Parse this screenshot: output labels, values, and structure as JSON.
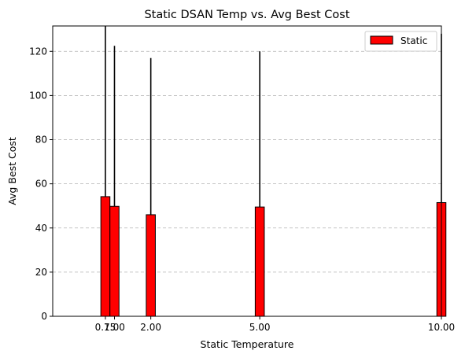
{
  "chart_data": {
    "type": "bar",
    "title": "Static DSAN Temp vs. Avg Best Cost",
    "xlabel": "Static Temperature",
    "ylabel": "Avg Best Cost",
    "x": [
      0.75,
      1.0,
      2.0,
      5.0,
      10.0
    ],
    "x_tick_labels": [
      "0.75",
      "1.00",
      "2.00",
      "5.00",
      "10.00"
    ],
    "series": [
      {
        "name": "Static",
        "values": [
          54.2,
          49.8,
          46.0,
          49.5,
          51.5
        ],
        "error_upper": [
          131.5,
          122.5,
          117.0,
          120.0,
          128.0
        ],
        "color": "#ff0000",
        "edge_color": "#000000"
      }
    ],
    "bar_width": 0.25,
    "error_color": "#000000",
    "xlim": [
      -0.7,
      10.0
    ],
    "ylim": [
      0,
      131.5
    ],
    "y_ticks": [
      0,
      20,
      40,
      60,
      80,
      100,
      120
    ],
    "grid": {
      "axis": "y",
      "style": "dashed",
      "color": "#b0b0b0"
    },
    "legend": {
      "placement": "top-right",
      "entries": [
        "Static"
      ]
    }
  }
}
